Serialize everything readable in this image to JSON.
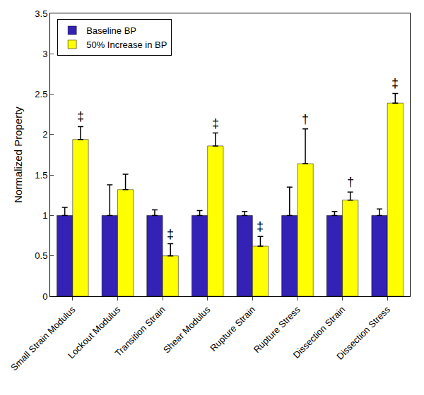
{
  "chart_data": {
    "type": "bar",
    "y_label": "Normalized Property",
    "categories": [
      "Small Strain Modulus",
      "Lockout Modulus",
      "Transition Strain",
      "Shear Modulus",
      "Rupture Strain",
      "Rupture Stress",
      "Dissection Strain",
      "Dissection Stress"
    ],
    "series": [
      {
        "name": "Baseline BP",
        "color": "#3322b5",
        "values": [
          1,
          1,
          1,
          1,
          1,
          1,
          1,
          1
        ],
        "errors": [
          0.1,
          0.38,
          0.07,
          0.06,
          0.05,
          0.35,
          0.05,
          0.08
        ],
        "significance": [
          null,
          null,
          null,
          null,
          null,
          null,
          null,
          null
        ]
      },
      {
        "name": "50% Increase in BP",
        "color": "#ffff00",
        "values": [
          1.94,
          1.32,
          0.5,
          1.86,
          0.62,
          1.64,
          1.19,
          2.39
        ],
        "errors": [
          0.16,
          0.19,
          0.15,
          0.16,
          0.12,
          0.43,
          0.1,
          0.12
        ],
        "significance": [
          "‡",
          null,
          "‡",
          "‡",
          "‡",
          "†",
          "†",
          "‡"
        ]
      }
    ],
    "ylim": [
      0,
      3.5
    ],
    "yticks": [
      0,
      0.5,
      1,
      1.5,
      2,
      2.5,
      3,
      3.5
    ],
    "grid": false,
    "legend": "upper left"
  }
}
